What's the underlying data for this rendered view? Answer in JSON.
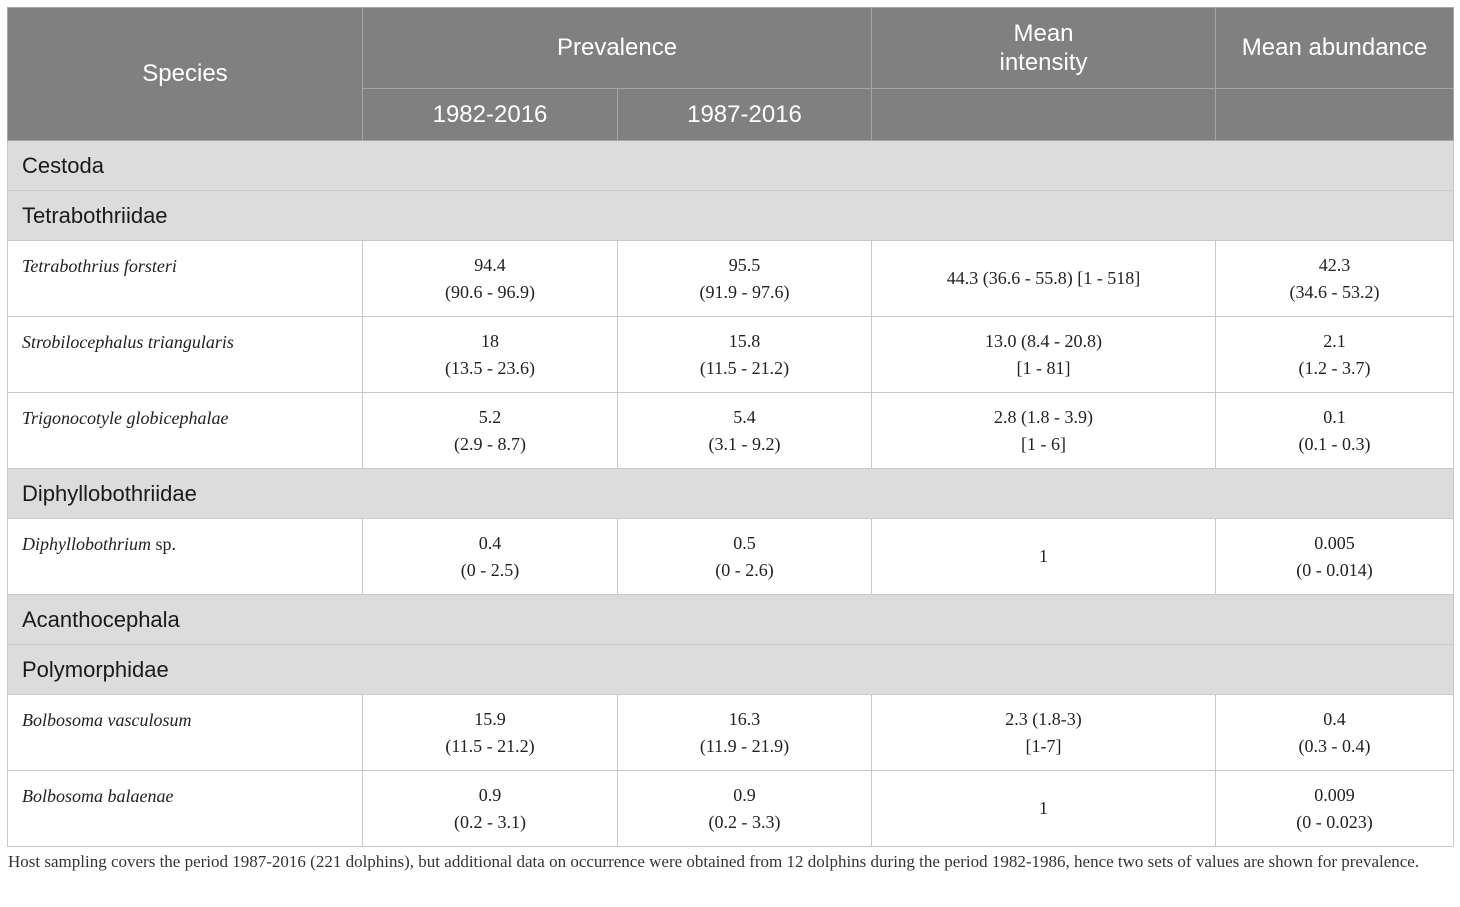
{
  "header": {
    "species": "Species",
    "prevalence": "Prevalence",
    "period1": "1982-2016",
    "period2": "1987-2016",
    "mean_intensity_line1": "Mean",
    "mean_intensity_line2": "intensity",
    "mean_abundance": "Mean abundance"
  },
  "groups": {
    "cestoda": "Cestoda",
    "tetrabothriidae": "Tetrabothriidae",
    "diphyllobothriidae": "Diphyllobothriidae",
    "acanthocephala": "Acanthocephala",
    "polymorphidae": "Polymorphidae"
  },
  "rows": [
    {
      "species": "Tetrabothrius forsteri",
      "prev1": "94.4",
      "prev1_ci": "(90.6 - 96.9)",
      "prev2": "95.5",
      "prev2_ci": "(91.9 - 97.6)",
      "intensity": "44.3 (36.6 - 55.8) [1 - 518]",
      "intensity2": "",
      "abundance": "42.3",
      "abundance_ci": "(34.6 - 53.2)"
    },
    {
      "species": "Strobilocephalus triangularis",
      "prev1": "18",
      "prev1_ci": "(13.5 - 23.6)",
      "prev2": "15.8",
      "prev2_ci": "(11.5 - 21.2)",
      "intensity": "13.0 (8.4 - 20.8)",
      "intensity2": "[1 - 81]",
      "abundance": "2.1",
      "abundance_ci": "(1.2 - 3.7)"
    },
    {
      "species": "Trigonocotyle globicephalae",
      "prev1": "5.2",
      "prev1_ci": "(2.9 - 8.7)",
      "prev2": "5.4",
      "prev2_ci": "(3.1 - 9.2)",
      "intensity": "2.8 (1.8 - 3.9)",
      "intensity2": "[1 - 6]",
      "abundance": "0.1",
      "abundance_ci": "(0.1 - 0.3)"
    },
    {
      "species": "Diphyllobothrium",
      "species_suffix": " sp.",
      "prev1": "0.4",
      "prev1_ci": "(0 - 2.5)",
      "prev2": "0.5",
      "prev2_ci": "(0 - 2.6)",
      "intensity": "1",
      "intensity2": "",
      "abundance": "0.005",
      "abundance_ci": "(0 - 0.014)"
    },
    {
      "species": "Bolbosoma vasculosum",
      "prev1": "15.9",
      "prev1_ci": "(11.5 - 21.2)",
      "prev2": "16.3",
      "prev2_ci": "(11.9 - 21.9)",
      "intensity": "2.3 (1.8-3)",
      "intensity2": "[1-7]",
      "abundance": "0.4",
      "abundance_ci": "(0.3 - 0.4)"
    },
    {
      "species": "Bolbosoma balaenae",
      "prev1": "0.9",
      "prev1_ci": "(0.2 - 3.1)",
      "prev2": "0.9",
      "prev2_ci": "(0.2 - 3.3)",
      "intensity": "1",
      "intensity2": "",
      "abundance": "0.009",
      "abundance_ci": "(0 - 0.023)"
    }
  ],
  "footnote": "Host sampling covers the period 1987-2016 (221 dolphins), but additional data on occurrence were obtained from 12 dolphins during the period 1982-1986, hence two sets of values are shown for prevalence."
}
